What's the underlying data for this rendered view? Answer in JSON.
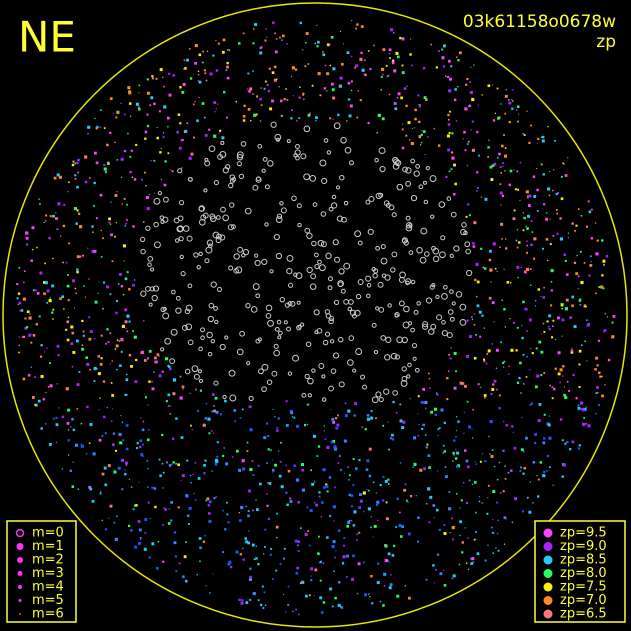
{
  "header": {
    "direction": "NE",
    "image_id": "03k61158o0678w",
    "mode": "zp"
  },
  "magnitude_legend": [
    "m=0",
    "m=1",
    "m=2",
    "m=3",
    "m=4",
    "m=5",
    "m=6"
  ],
  "zp_legend": [
    {
      "label": "zp=9.5",
      "color": "#ff44ff"
    },
    {
      "label": "zp=9.0",
      "color": "#aa22ff"
    },
    {
      "label": "zp=8.5",
      "color": "#22ccff"
    },
    {
      "label": "zp=8.0",
      "color": "#22ff66"
    },
    {
      "label": "zp=7.5",
      "color": "#ffee00"
    },
    {
      "label": "zp=7.0",
      "color": "#ff8822"
    },
    {
      "label": "zp=6.5",
      "color": "#ff7777"
    }
  ]
}
